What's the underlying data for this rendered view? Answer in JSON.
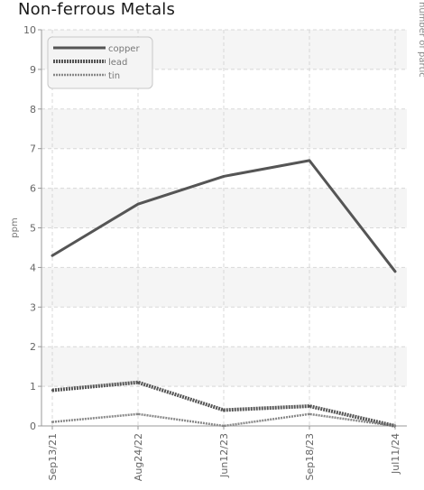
{
  "chart_data": {
    "type": "line",
    "title": "Non-ferrous Metals",
    "xlabel": "",
    "ylabel": "ppm",
    "y2label": "number of partic",
    "categories": [
      "Sep13/21",
      "Aug24/22",
      "Jun12/23",
      "Sep18/23",
      "Jul11/24"
    ],
    "ylim": [
      0,
      10
    ],
    "yticks": [
      0,
      1,
      2,
      3,
      4,
      5,
      6,
      7,
      8,
      9,
      10
    ],
    "grid": true,
    "legend_position": "top-left",
    "series": [
      {
        "name": "copper",
        "values": [
          4.3,
          5.6,
          6.3,
          6.7,
          3.9
        ],
        "color": "#555555",
        "style": "solid"
      },
      {
        "name": "lead",
        "values": [
          0.9,
          1.1,
          0.4,
          0.5,
          0.0
        ],
        "color": "#555555",
        "style": "dotted-thick"
      },
      {
        "name": "tin",
        "values": [
          0.1,
          0.3,
          0.0,
          0.3,
          0.0
        ],
        "color": "#888888",
        "style": "dotted-thin"
      }
    ]
  }
}
